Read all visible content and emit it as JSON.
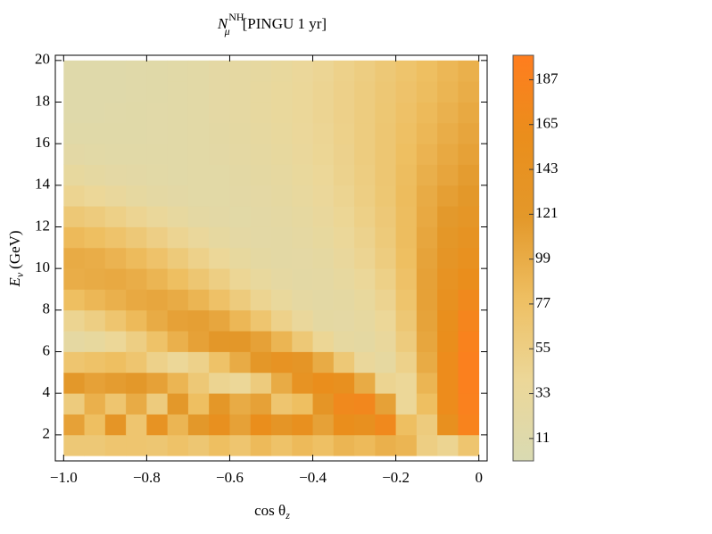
{
  "chart_data": {
    "type": "heatmap",
    "title": {
      "symbol": "N",
      "sub": "μ",
      "sup": "NH",
      "rest": "[PINGU 1 yr]"
    },
    "x_label": {
      "text": "cos θ",
      "sub": "z"
    },
    "y_label": {
      "symbol": "E",
      "sub": "ν",
      "rest": "(GeV)"
    },
    "xbins": [
      -1,
      -0.95,
      -0.9,
      -0.85,
      -0.8,
      -0.75,
      -0.7,
      -0.65,
      -0.6,
      -0.55,
      -0.5,
      -0.45,
      -0.4,
      -0.35,
      -0.3,
      -0.25,
      -0.2,
      -0.15,
      -0.1,
      -0.05,
      0
    ],
    "ybins": [
      1,
      2,
      3,
      4,
      5,
      6,
      7,
      8,
      9,
      10,
      11,
      12,
      13,
      14,
      15,
      16,
      17,
      18,
      19,
      20
    ],
    "z": [
      [
        65,
        65,
        70,
        70,
        68,
        75,
        68,
        80,
        70,
        85,
        75,
        85,
        78,
        90,
        85,
        95,
        90,
        55,
        45,
        70
      ],
      [
        110,
        80,
        130,
        70,
        140,
        90,
        120,
        150,
        110,
        160,
        130,
        150,
        110,
        160,
        150,
        170,
        80,
        60,
        150,
        185
      ],
      [
        60,
        95,
        70,
        100,
        60,
        120,
        80,
        125,
        100,
        110,
        70,
        80,
        130,
        170,
        175,
        110,
        40,
        80,
        165,
        190
      ],
      [
        120,
        110,
        115,
        120,
        110,
        90,
        65,
        45,
        40,
        60,
        100,
        140,
        160,
        150,
        100,
        45,
        40,
        90,
        165,
        192
      ],
      [
        70,
        75,
        80,
        70,
        50,
        40,
        50,
        75,
        100,
        125,
        140,
        130,
        100,
        65,
        35,
        28,
        50,
        100,
        165,
        192
      ],
      [
        25,
        30,
        40,
        55,
        75,
        95,
        110,
        122,
        122,
        110,
        90,
        65,
        42,
        27,
        24,
        34,
        60,
        105,
        160,
        188
      ],
      [
        45,
        55,
        70,
        85,
        100,
        110,
        112,
        105,
        88,
        70,
        50,
        35,
        24,
        22,
        27,
        40,
        66,
        108,
        155,
        180
      ],
      [
        80,
        88,
        95,
        102,
        105,
        100,
        90,
        76,
        60,
        45,
        33,
        25,
        21,
        24,
        32,
        46,
        72,
        110,
        148,
        170
      ],
      [
        98,
        100,
        102,
        98,
        90,
        80,
        68,
        55,
        42,
        32,
        25,
        21,
        23,
        29,
        38,
        52,
        76,
        110,
        140,
        160
      ],
      [
        100,
        98,
        92,
        84,
        74,
        62,
        50,
        40,
        30,
        24,
        21,
        22,
        26,
        34,
        44,
        58,
        80,
        108,
        132,
        148
      ],
      [
        85,
        80,
        73,
        64,
        54,
        44,
        35,
        27,
        22,
        20,
        21,
        25,
        30,
        38,
        48,
        62,
        82,
        105,
        125,
        138
      ],
      [
        65,
        60,
        52,
        44,
        36,
        29,
        23,
        20,
        19,
        20,
        23,
        28,
        34,
        42,
        52,
        64,
        82,
        102,
        118,
        128
      ],
      [
        45,
        40,
        34,
        28,
        23,
        20,
        18,
        18,
        20,
        22,
        26,
        31,
        37,
        45,
        55,
        67,
        83,
        100,
        112,
        120
      ],
      [
        30,
        26,
        22,
        20,
        18,
        17,
        18,
        19,
        21,
        24,
        28,
        33,
        40,
        48,
        57,
        68,
        82,
        96,
        106,
        115
      ],
      [
        20,
        18,
        17,
        17,
        17,
        17,
        18,
        20,
        23,
        26,
        30,
        35,
        42,
        49,
        58,
        68,
        80,
        92,
        102,
        110
      ],
      [
        15,
        15,
        15,
        15,
        16,
        17,
        19,
        21,
        24,
        28,
        32,
        37,
        43,
        50,
        58,
        68,
        78,
        88,
        98,
        106
      ],
      [
        13,
        13,
        14,
        15,
        16,
        17,
        19,
        22,
        25,
        29,
        33,
        38,
        44,
        51,
        58,
        67,
        76,
        85,
        94,
        102
      ],
      [
        12,
        12,
        13,
        14,
        15,
        17,
        19,
        22,
        25,
        29,
        33,
        38,
        44,
        51,
        58,
        66,
        74,
        82,
        90,
        98
      ],
      [
        12,
        12,
        13,
        14,
        15,
        17,
        19,
        22,
        25,
        28,
        32,
        37,
        43,
        50,
        57,
        65,
        72,
        80,
        88,
        95
      ]
    ],
    "xlim": [
      -1.02,
      0.02
    ],
    "ylim": [
      0.75,
      20.25
    ],
    "xticks": [
      {
        "value": -1,
        "label": "−1.0"
      },
      {
        "value": -0.8,
        "label": "−0.8"
      },
      {
        "value": -0.6,
        "label": "−0.6"
      },
      {
        "value": -0.4,
        "label": "−0.4"
      },
      {
        "value": -0.2,
        "label": "−0.2"
      },
      0
    ],
    "yticks": [
      2,
      4,
      6,
      8,
      10,
      12,
      14,
      16,
      18,
      20
    ],
    "clim": [
      0,
      199
    ],
    "cticks": [
      11,
      33,
      55,
      77,
      99,
      121,
      143,
      165,
      187
    ],
    "colormap": [
      "#d9dab2",
      "#ecd798",
      "#eebf62",
      "#e3982a",
      "#ea8e1c",
      "#ff7d1e"
    ]
  }
}
